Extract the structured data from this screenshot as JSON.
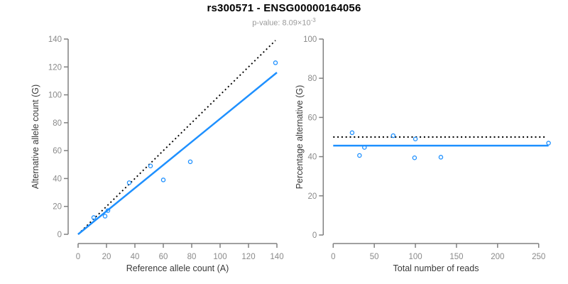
{
  "header": {
    "title": "rs300571 - ENSG00000164056",
    "subtitle_prefix": "p-value: 8.09×10",
    "subtitle_exponent": "-3"
  },
  "colors": {
    "point_blue": "#1E90FF",
    "line_blue": "#1E90FF",
    "reference_black": "#000000",
    "axis_gray": "#808080",
    "tick_text_gray": "#8a8a8a",
    "axis_title_dark": "#3a3a3a"
  },
  "chart_data": [
    {
      "type": "scatter",
      "title": "",
      "xlabel": "Reference allele count (A)",
      "ylabel": "Alternative allele count (G)",
      "xlim": [
        0,
        140
      ],
      "ylim": [
        0,
        140
      ],
      "xticks": [
        0,
        20,
        40,
        60,
        80,
        100,
        120,
        140
      ],
      "yticks": [
        0,
        20,
        40,
        60,
        80,
        100,
        120,
        140
      ],
      "grid": false,
      "legend": "none",
      "points": [
        {
          "x": 11,
          "y": 12
        },
        {
          "x": 19,
          "y": 13
        },
        {
          "x": 21,
          "y": 17
        },
        {
          "x": 36,
          "y": 37
        },
        {
          "x": 51,
          "y": 49
        },
        {
          "x": 60,
          "y": 39
        },
        {
          "x": 79,
          "y": 52
        },
        {
          "x": 139,
          "y": 123
        }
      ],
      "lines": [
        {
          "name": "identity-line",
          "style": "dotted",
          "color_key": "reference_black",
          "x": [
            0,
            139
          ],
          "y": [
            0,
            139
          ]
        },
        {
          "name": "regression-line",
          "style": "solid",
          "color_key": "line_blue",
          "x": [
            0,
            140
          ],
          "y": [
            0,
            116
          ]
        }
      ]
    },
    {
      "type": "scatter",
      "title": "",
      "xlabel": "Total number of reads",
      "ylabel": "Percentage alternative (G)",
      "xlim": [
        0,
        250
      ],
      "ylim": [
        0,
        100
      ],
      "xticks": [
        0,
        50,
        100,
        150,
        200,
        250
      ],
      "yticks": [
        0,
        20,
        40,
        60,
        80,
        100
      ],
      "grid": false,
      "legend": "none",
      "points": [
        {
          "x": 23,
          "y": 52.2
        },
        {
          "x": 32,
          "y": 40.6
        },
        {
          "x": 38,
          "y": 44.7
        },
        {
          "x": 73,
          "y": 50.7
        },
        {
          "x": 99,
          "y": 39.4
        },
        {
          "x": 100,
          "y": 49
        },
        {
          "x": 131,
          "y": 39.7
        },
        {
          "x": 262,
          "y": 46.9
        }
      ],
      "lines": [
        {
          "name": "fifty-percent-line",
          "style": "dotted",
          "color_key": "reference_black",
          "x": [
            0,
            259
          ],
          "y": [
            50,
            50
          ]
        },
        {
          "name": "mean-percentage-line",
          "style": "solid",
          "color_key": "line_blue",
          "x": [
            0,
            262
          ],
          "y": [
            45.6,
            45.6
          ]
        }
      ]
    }
  ]
}
